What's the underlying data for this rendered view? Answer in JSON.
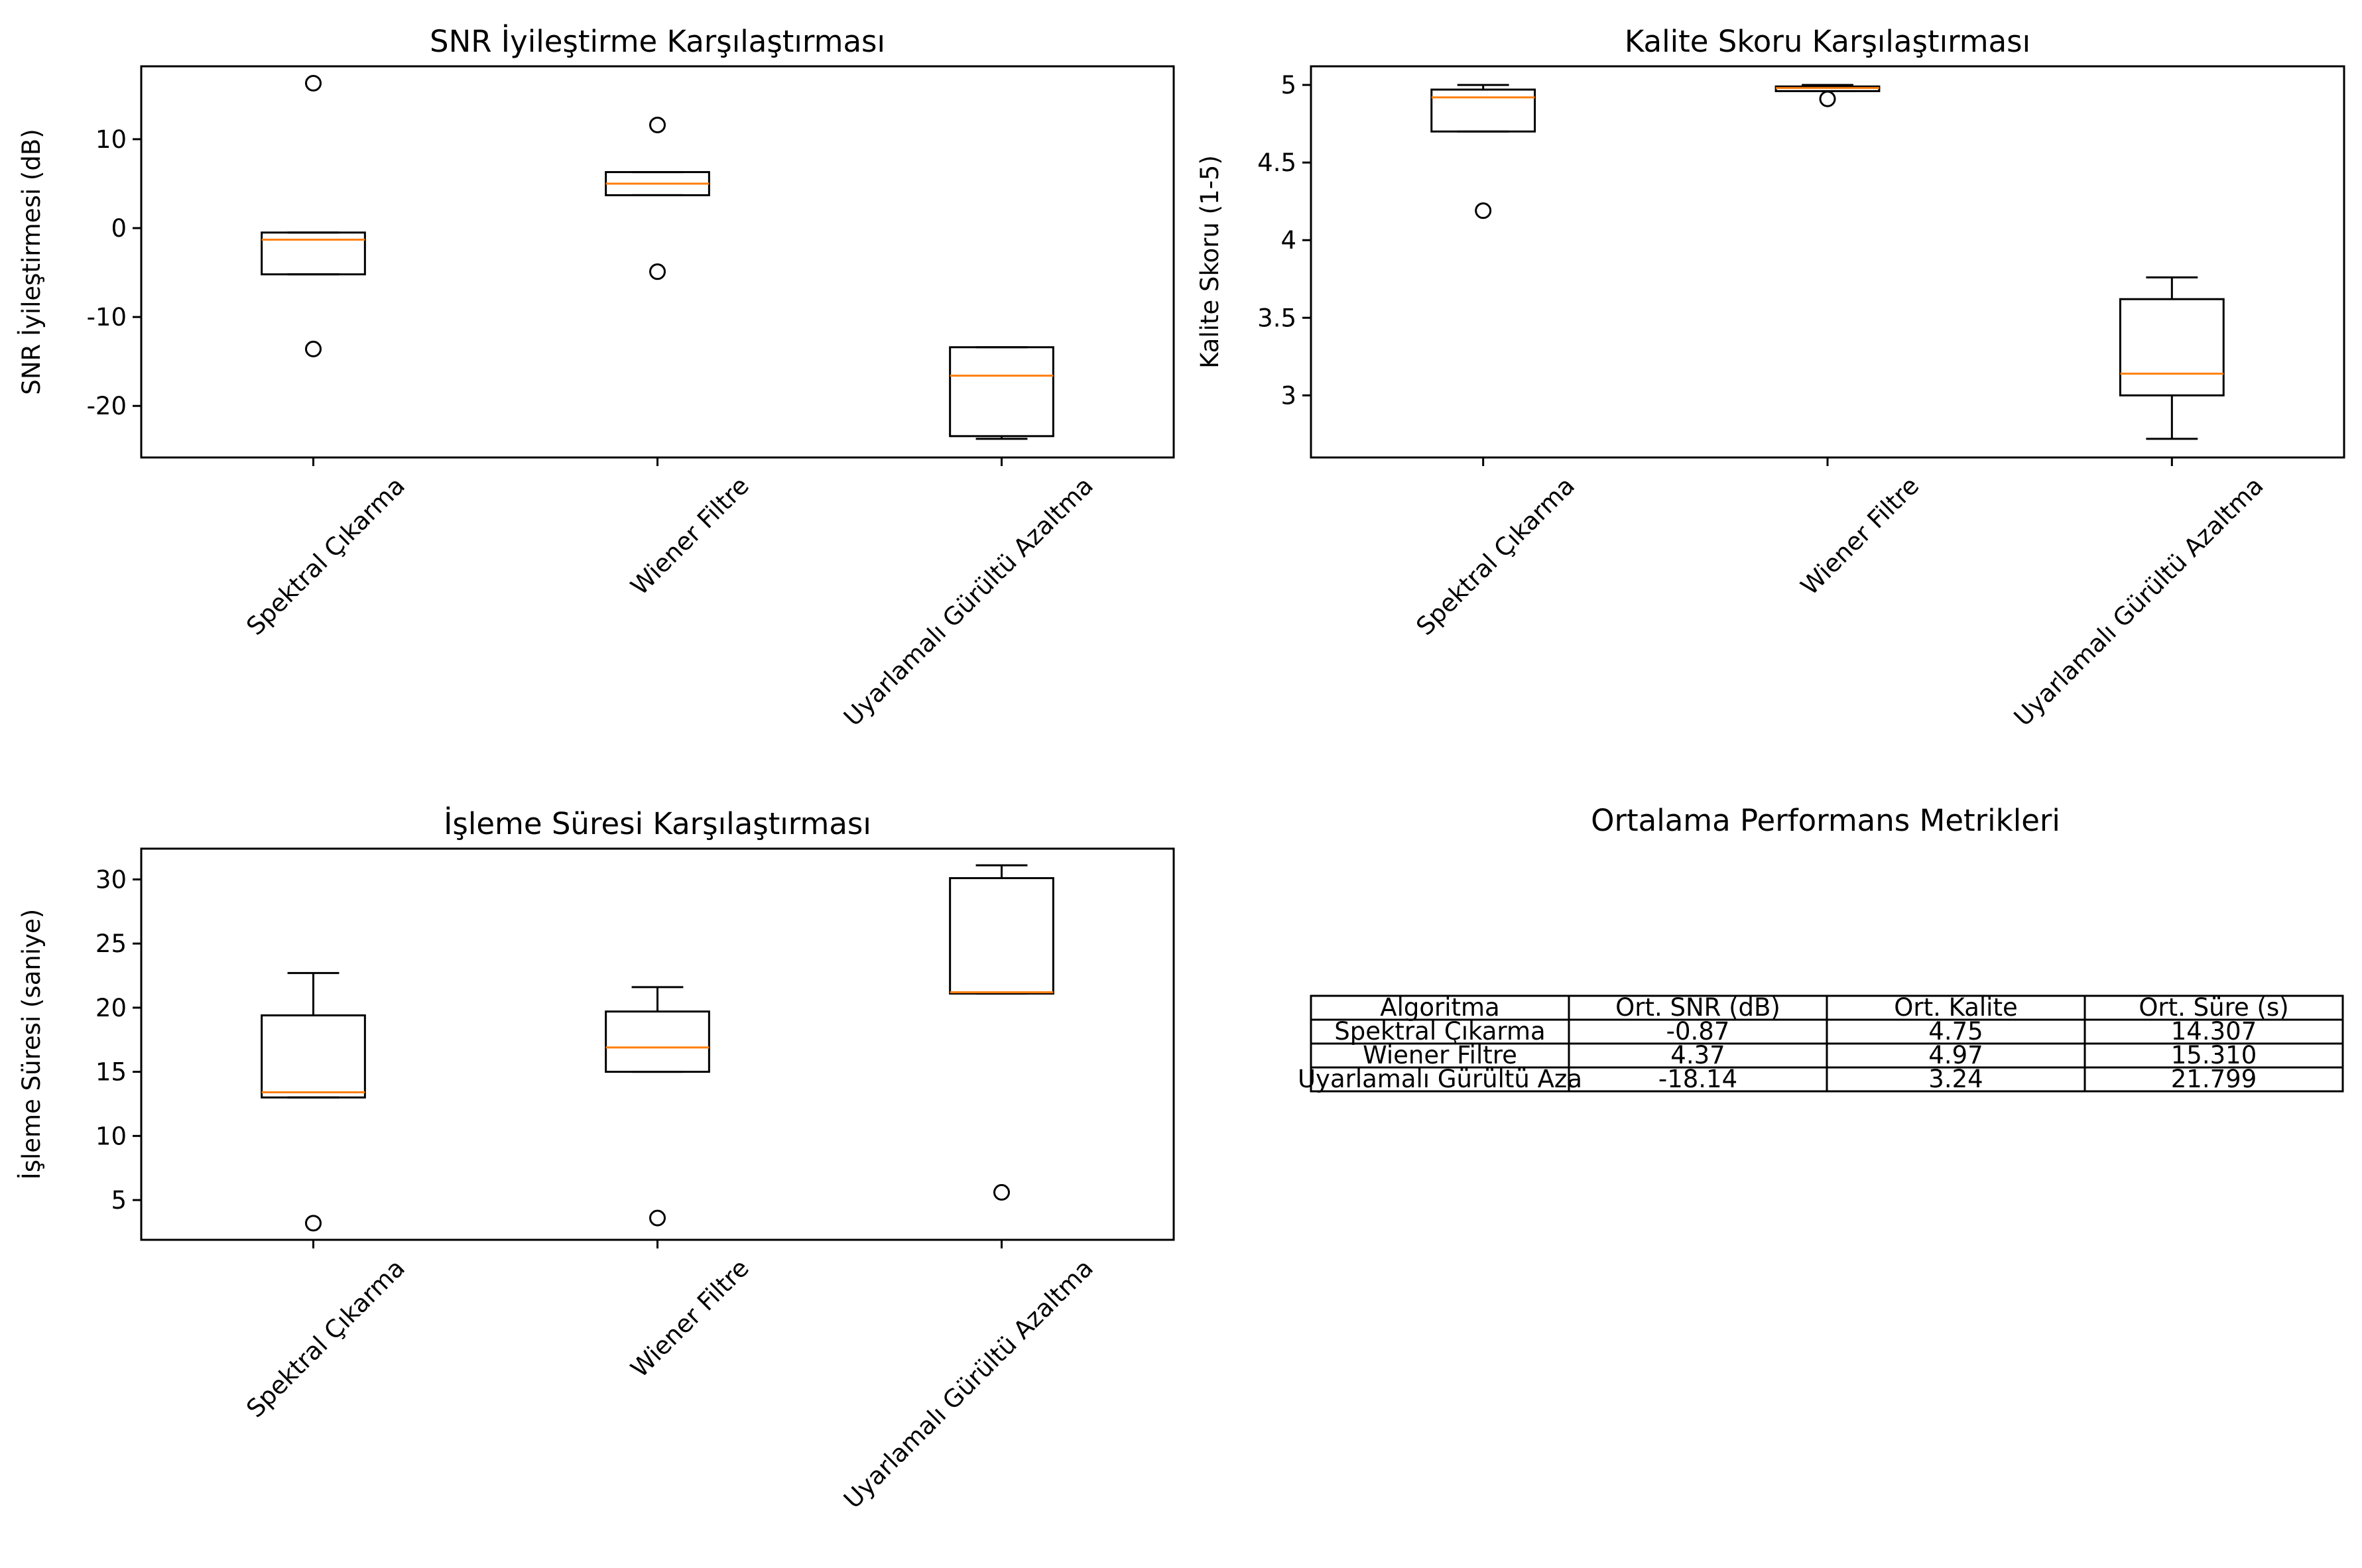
{
  "colors": {
    "box": "#000000",
    "median": "#ff7f0e",
    "background": "#ffffff"
  },
  "chart_data": [
    {
      "type": "box",
      "title": "SNR İyileştirme Karşılaştırması",
      "xlabel": "",
      "ylabel": "SNR İyileştirmesi (dB)",
      "categories": [
        "Spektral Çıkarma",
        "Wiener Filtre",
        "Uyarlamalı Gürültü Azaltma"
      ],
      "ylim": [
        -25.8,
        18.2
      ],
      "yticks": [
        10,
        0,
        -10,
        -20
      ],
      "boxes": [
        {
          "whislo": -5.2,
          "q1": -5.2,
          "med": -1.3,
          "q3": -0.5,
          "whishi": -0.5,
          "fliers": [
            16.3,
            -13.6
          ]
        },
        {
          "whislo": 3.7,
          "q1": 3.7,
          "med": 5.0,
          "q3": 6.3,
          "whishi": 6.3,
          "fliers": [
            11.6,
            -4.9
          ]
        },
        {
          "whislo": -23.7,
          "q1": -23.4,
          "med": -16.6,
          "q3": -13.4,
          "whishi": -13.4,
          "fliers": []
        }
      ]
    },
    {
      "type": "box",
      "title": "Kalite Skoru Karşılaştırması",
      "xlabel": "",
      "ylabel": "Kalite Skoru (1-5)",
      "categories": [
        "Spektral Çıkarma",
        "Wiener Filtre",
        "Uyarlamalı Gürültü Azaltma"
      ],
      "ylim": [
        2.6,
        5.12
      ],
      "yticks": [
        5.0,
        4.5,
        4.0,
        3.5,
        3.0
      ],
      "boxes": [
        {
          "whislo": 4.7,
          "q1": 4.7,
          "med": 4.92,
          "q3": 4.97,
          "whishi": 5.0,
          "fliers": [
            4.19
          ]
        },
        {
          "whislo": 4.96,
          "q1": 4.96,
          "med": 4.98,
          "q3": 4.99,
          "whishi": 5.0,
          "fliers": [
            4.91
          ]
        },
        {
          "whislo": 2.72,
          "q1": 3.0,
          "med": 3.14,
          "q3": 3.62,
          "whishi": 3.76,
          "fliers": []
        }
      ]
    },
    {
      "type": "box",
      "title": "İşleme Süresi Karşılaştırması",
      "xlabel": "",
      "ylabel": "İşleme Süresi (saniye)",
      "categories": [
        "Spektral Çıkarma",
        "Wiener Filtre",
        "Uyarlamalı Gürültü Azaltma"
      ],
      "ylim": [
        1.9,
        32.4
      ],
      "yticks": [
        30,
        25,
        20,
        15,
        10,
        5
      ],
      "boxes": [
        {
          "whislo": 13.0,
          "q1": 13.0,
          "med": 13.4,
          "q3": 19.4,
          "whishi": 22.7,
          "fliers": [
            3.2
          ]
        },
        {
          "whislo": 15.0,
          "q1": 15.0,
          "med": 16.9,
          "q3": 19.7,
          "whishi": 21.6,
          "fliers": [
            3.6
          ]
        },
        {
          "whislo": 21.1,
          "q1": 21.1,
          "med": 21.2,
          "q3": 30.1,
          "whishi": 31.1,
          "fliers": [
            5.6
          ]
        }
      ]
    },
    {
      "type": "table",
      "title": "Ortalama Performans Metrikleri",
      "columns": [
        "Algoritma",
        "Ort. SNR (dB)",
        "Ort. Kalite",
        "Ort. Süre (s)"
      ],
      "rows": [
        [
          "Spektral Çıkarma",
          "-0.87",
          "4.75",
          "14.307"
        ],
        [
          "Wiener Filtre",
          "4.37",
          "4.97",
          "15.310"
        ],
        [
          "Uyarlamalı Gürültü Aza",
          "-18.14",
          "3.24",
          "21.799"
        ]
      ]
    }
  ]
}
